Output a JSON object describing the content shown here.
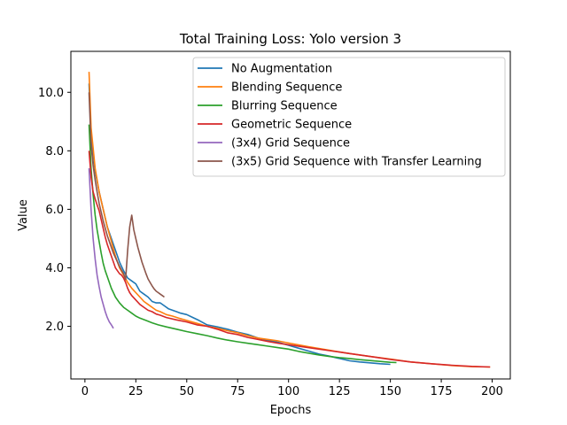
{
  "chart_data": {
    "type": "line",
    "title": "Total Training Loss: Yolo version 3",
    "xlabel": "Epochs",
    "ylabel": "Value",
    "xlim": [
      -6.9,
      208.9
    ],
    "ylim": [
      0.2,
      11.4
    ],
    "xticks": [
      0,
      25,
      50,
      75,
      100,
      125,
      150,
      175,
      200
    ],
    "yticks": [
      2.0,
      4.0,
      6.0,
      8.0,
      10.0
    ],
    "ytick_labels": [
      "2.0",
      "4.0",
      "6.0",
      "8.0",
      "10.0"
    ],
    "grid": false,
    "legend_position": "top-right",
    "series": [
      {
        "name": "No Augmentation",
        "color": "#1f77b4",
        "points": [
          [
            2,
            10.3
          ],
          [
            3,
            8.5
          ],
          [
            5,
            7.3
          ],
          [
            7,
            6.6
          ],
          [
            9,
            6.0
          ],
          [
            11,
            5.4
          ],
          [
            13,
            5.0
          ],
          [
            15,
            4.6
          ],
          [
            17,
            4.2
          ],
          [
            19,
            3.9
          ],
          [
            21,
            3.65
          ],
          [
            23,
            3.55
          ],
          [
            25,
            3.45
          ],
          [
            27,
            3.2
          ],
          [
            29,
            3.1
          ],
          [
            31,
            3.0
          ],
          [
            33,
            2.85
          ],
          [
            35,
            2.8
          ],
          [
            37,
            2.8
          ],
          [
            39,
            2.7
          ],
          [
            41,
            2.6
          ],
          [
            43,
            2.55
          ],
          [
            45,
            2.5
          ],
          [
            47,
            2.45
          ],
          [
            50,
            2.4
          ],
          [
            53,
            2.3
          ],
          [
            56,
            2.2
          ],
          [
            60,
            2.05
          ],
          [
            65,
            1.98
          ],
          [
            70,
            1.9
          ],
          [
            75,
            1.8
          ],
          [
            80,
            1.72
          ],
          [
            85,
            1.6
          ],
          [
            90,
            1.52
          ],
          [
            95,
            1.45
          ],
          [
            100,
            1.35
          ],
          [
            105,
            1.25
          ],
          [
            110,
            1.15
          ],
          [
            115,
            1.05
          ],
          [
            120,
            0.98
          ],
          [
            125,
            0.9
          ],
          [
            130,
            0.82
          ],
          [
            135,
            0.78
          ],
          [
            140,
            0.75
          ],
          [
            145,
            0.72
          ],
          [
            150,
            0.7
          ]
        ]
      },
      {
        "name": "Blending Sequence",
        "color": "#ff7f0e",
        "points": [
          [
            2,
            10.7
          ],
          [
            3,
            8.8
          ],
          [
            5,
            7.4
          ],
          [
            7,
            6.6
          ],
          [
            9,
            6.0
          ],
          [
            11,
            5.4
          ],
          [
            13,
            4.9
          ],
          [
            15,
            4.4
          ],
          [
            17,
            4.0
          ],
          [
            19,
            3.75
          ],
          [
            21,
            3.5
          ],
          [
            23,
            3.3
          ],
          [
            25,
            3.15
          ],
          [
            27,
            3.0
          ],
          [
            29,
            2.85
          ],
          [
            31,
            2.75
          ],
          [
            33,
            2.65
          ],
          [
            35,
            2.55
          ],
          [
            37,
            2.5
          ],
          [
            40,
            2.4
          ],
          [
            43,
            2.35
          ],
          [
            46,
            2.28
          ],
          [
            50,
            2.2
          ],
          [
            55,
            2.1
          ],
          [
            60,
            2.0
          ],
          [
            65,
            1.93
          ],
          [
            70,
            1.85
          ],
          [
            75,
            1.78
          ],
          [
            80,
            1.68
          ],
          [
            85,
            1.6
          ],
          [
            90,
            1.55
          ],
          [
            95,
            1.5
          ],
          [
            100,
            1.43
          ],
          [
            110,
            1.3
          ],
          [
            120,
            1.18
          ],
          [
            130,
            1.07
          ],
          [
            140,
            0.97
          ],
          [
            150,
            0.88
          ],
          [
            160,
            0.78
          ],
          [
            170,
            0.72
          ],
          [
            180,
            0.66
          ],
          [
            190,
            0.62
          ],
          [
            199,
            0.61
          ]
        ]
      },
      {
        "name": "Blurring Sequence",
        "color": "#2ca02c",
        "points": [
          [
            2,
            8.9
          ],
          [
            3,
            7.4
          ],
          [
            4,
            6.5
          ],
          [
            5,
            5.8
          ],
          [
            6,
            5.3
          ],
          [
            7,
            4.9
          ],
          [
            8,
            4.5
          ],
          [
            9,
            4.15
          ],
          [
            10,
            3.9
          ],
          [
            11,
            3.7
          ],
          [
            12,
            3.5
          ],
          [
            13,
            3.3
          ],
          [
            14,
            3.15
          ],
          [
            15,
            3.0
          ],
          [
            17,
            2.8
          ],
          [
            19,
            2.65
          ],
          [
            21,
            2.55
          ],
          [
            23,
            2.45
          ],
          [
            25,
            2.35
          ],
          [
            27,
            2.28
          ],
          [
            30,
            2.2
          ],
          [
            33,
            2.12
          ],
          [
            36,
            2.05
          ],
          [
            40,
            1.98
          ],
          [
            45,
            1.9
          ],
          [
            50,
            1.82
          ],
          [
            55,
            1.75
          ],
          [
            60,
            1.68
          ],
          [
            65,
            1.6
          ],
          [
            70,
            1.53
          ],
          [
            75,
            1.47
          ],
          [
            80,
            1.42
          ],
          [
            85,
            1.37
          ],
          [
            90,
            1.32
          ],
          [
            95,
            1.27
          ],
          [
            100,
            1.22
          ],
          [
            105,
            1.14
          ],
          [
            110,
            1.08
          ],
          [
            115,
            1.02
          ],
          [
            120,
            0.97
          ],
          [
            125,
            0.93
          ],
          [
            130,
            0.9
          ],
          [
            135,
            0.86
          ],
          [
            140,
            0.83
          ],
          [
            145,
            0.8
          ],
          [
            150,
            0.77
          ],
          [
            153,
            0.76
          ]
        ]
      },
      {
        "name": "Geometric Sequence",
        "color": "#d62728",
        "points": [
          [
            2,
            8.0
          ],
          [
            3,
            7.1
          ],
          [
            4,
            6.6
          ],
          [
            5,
            6.35
          ],
          [
            6,
            6.15
          ],
          [
            7,
            5.95
          ],
          [
            8,
            5.65
          ],
          [
            9,
            5.35
          ],
          [
            10,
            5.05
          ],
          [
            11,
            4.8
          ],
          [
            12,
            4.6
          ],
          [
            13,
            4.4
          ],
          [
            14,
            4.2
          ],
          [
            15,
            4.0
          ],
          [
            16,
            3.9
          ],
          [
            17,
            3.8
          ],
          [
            18,
            3.75
          ],
          [
            19,
            3.65
          ],
          [
            20,
            3.5
          ],
          [
            21,
            3.3
          ],
          [
            22,
            3.15
          ],
          [
            23,
            3.05
          ],
          [
            25,
            2.9
          ],
          [
            27,
            2.75
          ],
          [
            29,
            2.65
          ],
          [
            31,
            2.55
          ],
          [
            33,
            2.5
          ],
          [
            35,
            2.42
          ],
          [
            37,
            2.38
          ],
          [
            40,
            2.3
          ],
          [
            45,
            2.22
          ],
          [
            50,
            2.15
          ],
          [
            55,
            2.05
          ],
          [
            60,
            2.0
          ],
          [
            65,
            1.9
          ],
          [
            70,
            1.78
          ],
          [
            75,
            1.72
          ],
          [
            80,
            1.62
          ],
          [
            85,
            1.55
          ],
          [
            90,
            1.48
          ],
          [
            95,
            1.42
          ],
          [
            100,
            1.37
          ],
          [
            110,
            1.27
          ],
          [
            120,
            1.17
          ],
          [
            130,
            1.07
          ],
          [
            140,
            0.97
          ],
          [
            150,
            0.87
          ],
          [
            160,
            0.78
          ],
          [
            170,
            0.72
          ],
          [
            180,
            0.67
          ],
          [
            190,
            0.63
          ],
          [
            199,
            0.61
          ]
        ]
      },
      {
        "name": "(3x4) Grid Sequence",
        "color": "#9467bd",
        "points": [
          [
            2,
            7.4
          ],
          [
            3,
            6.0
          ],
          [
            4,
            5.0
          ],
          [
            5,
            4.3
          ],
          [
            6,
            3.75
          ],
          [
            7,
            3.35
          ],
          [
            8,
            3.0
          ],
          [
            9,
            2.75
          ],
          [
            10,
            2.5
          ],
          [
            11,
            2.3
          ],
          [
            12,
            2.15
          ],
          [
            13,
            2.05
          ],
          [
            14,
            1.93
          ]
        ]
      },
      {
        "name": "(3x5) Grid Sequence with Transfer Learning",
        "color": "#8c564b",
        "points": [
          [
            2,
            10.0
          ],
          [
            3,
            8.2
          ],
          [
            4,
            7.5
          ],
          [
            5,
            7.0
          ],
          [
            6,
            6.6
          ],
          [
            7,
            6.2
          ],
          [
            8,
            5.9
          ],
          [
            9,
            5.6
          ],
          [
            10,
            5.35
          ],
          [
            11,
            5.1
          ],
          [
            12,
            4.9
          ],
          [
            13,
            4.7
          ],
          [
            14,
            4.5
          ],
          [
            15,
            4.35
          ],
          [
            16,
            4.2
          ],
          [
            17,
            4.05
          ],
          [
            18,
            3.92
          ],
          [
            19,
            3.8
          ],
          [
            20,
            3.6
          ],
          [
            21,
            4.6
          ],
          [
            22,
            5.4
          ],
          [
            23,
            5.8
          ],
          [
            24,
            5.3
          ],
          [
            25,
            5.0
          ],
          [
            26,
            4.7
          ],
          [
            27,
            4.45
          ],
          [
            28,
            4.2
          ],
          [
            29,
            4.0
          ],
          [
            30,
            3.8
          ],
          [
            31,
            3.62
          ],
          [
            32,
            3.5
          ],
          [
            33,
            3.38
          ],
          [
            34,
            3.28
          ],
          [
            35,
            3.2
          ],
          [
            36,
            3.15
          ],
          [
            37,
            3.1
          ],
          [
            38,
            3.05
          ],
          [
            39,
            3.0
          ]
        ]
      }
    ]
  }
}
